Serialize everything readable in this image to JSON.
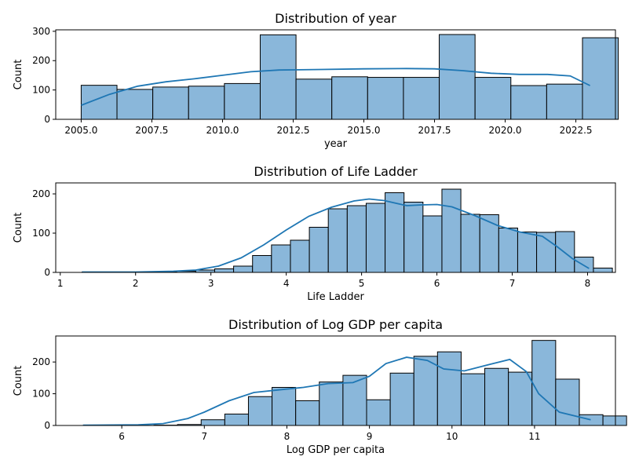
{
  "chart_data": [
    {
      "type": "bar",
      "title": "Distribution of year",
      "xlabel": "year",
      "ylabel": "Count",
      "xlim": [
        2004.1,
        2023.9
      ],
      "ylim": [
        0,
        305
      ],
      "xticks": [
        "2005.0",
        "2007.5",
        "2010.0",
        "2012.5",
        "2015.0",
        "2017.5",
        "2020.0",
        "2022.5"
      ],
      "xtick_values": [
        2005,
        2007.5,
        2010,
        2012.5,
        2015,
        2017.5,
        2020,
        2022.5
      ],
      "yticks": [
        0,
        100,
        200,
        300
      ],
      "bin_start": 2005,
      "bin_width": 1.2667,
      "values": [
        116,
        102,
        110,
        113,
        122,
        288,
        137,
        145,
        143,
        143,
        289,
        143,
        115,
        120,
        278
      ],
      "kde": [
        [
          2005,
          48
        ],
        [
          2006,
          85
        ],
        [
          2007,
          113
        ],
        [
          2008,
          128
        ],
        [
          2009,
          138
        ],
        [
          2010,
          150
        ],
        [
          2011,
          162
        ],
        [
          2012,
          168
        ],
        [
          2013.5,
          170
        ],
        [
          2015,
          172
        ],
        [
          2016.5,
          173
        ],
        [
          2017.5,
          172
        ],
        [
          2018.5,
          166
        ],
        [
          2019.5,
          157
        ],
        [
          2020.5,
          153
        ],
        [
          2021.5,
          153
        ],
        [
          2022.3,
          148
        ],
        [
          2023,
          115
        ]
      ]
    },
    {
      "type": "bar",
      "title": "Distribution of Life Ladder",
      "xlabel": "Life Ladder",
      "ylabel": "Count",
      "xlim": [
        0.94,
        8.37
      ],
      "ylim": [
        0,
        228
      ],
      "xticks": [
        "1",
        "2",
        "3",
        "4",
        "5",
        "6",
        "7",
        "8"
      ],
      "xtick_values": [
        1,
        2,
        3,
        4,
        5,
        6,
        7,
        8
      ],
      "yticks": [
        0,
        100,
        200
      ],
      "bin_start": 1.29,
      "bin_width": 0.2514,
      "values": [
        1,
        0,
        0,
        0,
        1,
        3,
        6,
        9,
        16,
        43,
        70,
        82,
        115,
        162,
        170,
        176,
        203,
        179,
        144,
        212,
        148,
        147,
        113,
        103,
        102,
        104,
        39,
        11
      ],
      "kde": [
        [
          1.29,
          1
        ],
        [
          2,
          1
        ],
        [
          2.5,
          3
        ],
        [
          2.8,
          6
        ],
        [
          3.1,
          16
        ],
        [
          3.4,
          37
        ],
        [
          3.7,
          70
        ],
        [
          4,
          108
        ],
        [
          4.3,
          143
        ],
        [
          4.6,
          166
        ],
        [
          4.9,
          182
        ],
        [
          5.1,
          187
        ],
        [
          5.3,
          183
        ],
        [
          5.6,
          170
        ],
        [
          5.8,
          172
        ],
        [
          6,
          173
        ],
        [
          6.2,
          167
        ],
        [
          6.5,
          145
        ],
        [
          6.8,
          120
        ],
        [
          7.1,
          103
        ],
        [
          7.4,
          92
        ],
        [
          7.6,
          65
        ],
        [
          7.8,
          35
        ],
        [
          8.02,
          10
        ]
      ]
    },
    {
      "type": "bar",
      "title": "Distribution of Log GDP per capita",
      "xlabel": "Log GDP per capita",
      "ylabel": "Count",
      "xlim": [
        5.2,
        11.98
      ],
      "ylim": [
        0,
        282
      ],
      "xticks": [
        "6",
        "7",
        "8",
        "9",
        "10",
        "11"
      ],
      "xtick_values": [
        6,
        7,
        8,
        9,
        10,
        11
      ],
      "yticks": [
        0,
        100,
        200
      ],
      "bin_start": 5.53,
      "bin_width": 0.2863,
      "values": [
        0,
        0,
        0,
        1,
        3,
        18,
        36,
        91,
        120,
        78,
        137,
        158,
        81,
        165,
        218,
        232,
        163,
        180,
        168,
        268,
        146,
        34,
        30
      ],
      "kde": [
        [
          5.53,
          1
        ],
        [
          6.2,
          2
        ],
        [
          6.5,
          6
        ],
        [
          6.8,
          22
        ],
        [
          7,
          42
        ],
        [
          7.3,
          78
        ],
        [
          7.6,
          104
        ],
        [
          7.9,
          112
        ],
        [
          8.2,
          120
        ],
        [
          8.5,
          132
        ],
        [
          8.8,
          135
        ],
        [
          9,
          155
        ],
        [
          9.2,
          195
        ],
        [
          9.45,
          215
        ],
        [
          9.7,
          205
        ],
        [
          9.9,
          178
        ],
        [
          10.15,
          172
        ],
        [
          10.45,
          192
        ],
        [
          10.7,
          208
        ],
        [
          10.9,
          170
        ],
        [
          11.05,
          100
        ],
        [
          11.3,
          42
        ],
        [
          11.68,
          18
        ]
      ]
    }
  ]
}
